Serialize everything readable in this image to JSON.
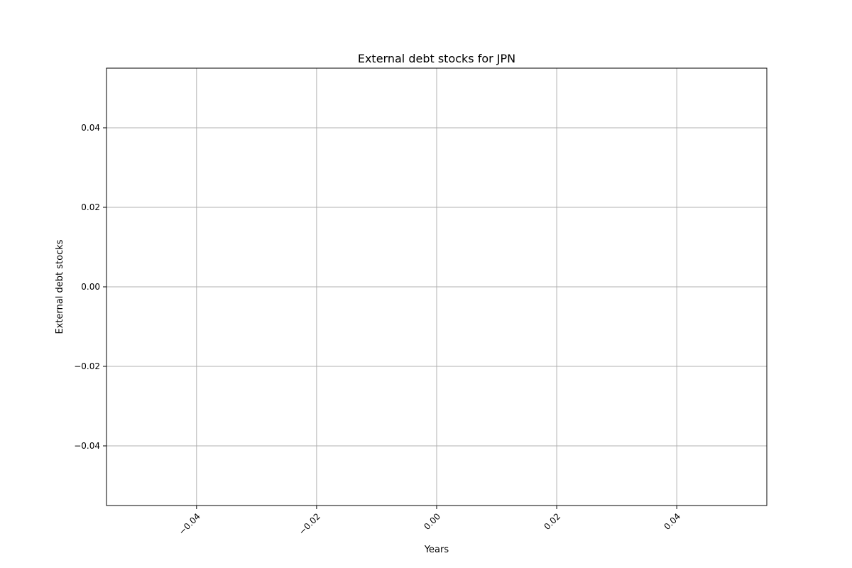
{
  "chart_data": {
    "type": "line",
    "title": "External debt stocks for JPN",
    "xlabel": "Years",
    "ylabel": "External debt stocks",
    "series": [],
    "xlim": [
      -0.055,
      0.055
    ],
    "ylim": [
      -0.055,
      0.055
    ],
    "xticks": [
      -0.04,
      -0.02,
      0.0,
      0.02,
      0.04
    ],
    "xtick_labels": [
      "−0.04",
      "−0.02",
      "0.00",
      "0.02",
      "0.04"
    ],
    "yticks": [
      0.04,
      0.02,
      0.0,
      -0.02,
      -0.04
    ],
    "ytick_labels": [
      "0.04",
      "0.02",
      "0.00",
      "−0.02",
      "−0.04"
    ],
    "grid": true,
    "xtick_rotation_deg": 45,
    "colors": {
      "grid": "#b0b0b0",
      "axes": "#000000",
      "background": "#ffffff"
    }
  }
}
